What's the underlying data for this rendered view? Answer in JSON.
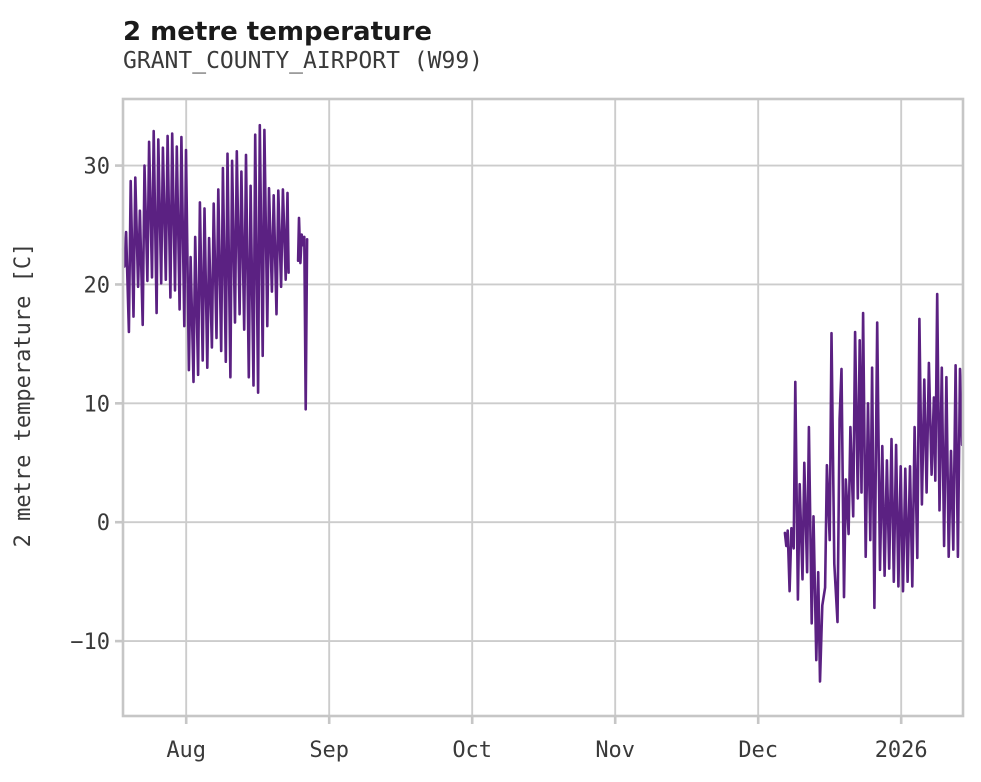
{
  "header": {
    "title": "2 metre temperature",
    "subtitle": "GRANT_COUNTY_AIRPORT (W99)"
  },
  "chart_data": {
    "type": "line",
    "title": "2 metre temperature",
    "subtitle": "GRANT_COUNTY_AIRPORT (W99)",
    "xlabel": "",
    "ylabel": "2 metre temperature [C]",
    "grid": true,
    "legend_position": "none",
    "line_color": "#5b2182",
    "grid_color": "#cccccc",
    "spine_color": "#c6c6c6",
    "x_unit": "days (axis origin = left edge, mid-July; ticks = month starts)",
    "xlim": [
      0,
      182.1
    ],
    "ylim": [
      -16.3,
      35.6
    ],
    "x_ticks": [
      {
        "pos": 13.7,
        "label": "Aug"
      },
      {
        "pos": 44.7,
        "label": "Sep"
      },
      {
        "pos": 75.7,
        "label": "Oct"
      },
      {
        "pos": 106.7,
        "label": "Nov"
      },
      {
        "pos": 137.7,
        "label": "Dec"
      },
      {
        "pos": 168.7,
        "label": "2026"
      }
    ],
    "y_ticks": [
      {
        "value": 30,
        "label": "30"
      },
      {
        "value": 20,
        "label": "20"
      },
      {
        "value": 10,
        "label": "10"
      },
      {
        "value": 0,
        "label": "0"
      },
      {
        "value": -10,
        "label": "−10"
      }
    ],
    "series": [
      {
        "name": "2 metre temperature",
        "segments": [
          [
            [
              0.05,
              23.0
            ],
            [
              0.3,
              21.5
            ],
            [
              0.68,
              24.4
            ],
            [
              1.28,
              16.0
            ],
            [
              1.66,
              28.7
            ],
            [
              2.28,
              17.3
            ],
            [
              2.66,
              29.0
            ],
            [
              3.28,
              19.8
            ],
            [
              3.66,
              26.2
            ],
            [
              4.28,
              16.6
            ],
            [
              4.66,
              30.0
            ],
            [
              5.28,
              20.3
            ],
            [
              5.66,
              32.0
            ],
            [
              6.28,
              20.6
            ],
            [
              6.66,
              32.9
            ],
            [
              7.28,
              17.6
            ],
            [
              7.66,
              32.2
            ],
            [
              8.28,
              20.1
            ],
            [
              8.66,
              31.5
            ],
            [
              9.28,
              20.4
            ],
            [
              9.66,
              32.5
            ],
            [
              10.28,
              18.9
            ],
            [
              10.66,
              32.7
            ],
            [
              11.28,
              19.5
            ],
            [
              11.66,
              31.6
            ],
            [
              12.28,
              17.9
            ],
            [
              12.66,
              32.4
            ],
            [
              13.28,
              16.5
            ],
            [
              13.66,
              31.3
            ],
            [
              14.28,
              12.8
            ],
            [
              14.66,
              22.3
            ],
            [
              15.28,
              11.8
            ],
            [
              15.66,
              24.0
            ],
            [
              16.28,
              12.4
            ],
            [
              16.66,
              26.9
            ],
            [
              17.28,
              13.6
            ],
            [
              17.66,
              26.4
            ],
            [
              18.28,
              13.0
            ],
            [
              18.66,
              23.9
            ],
            [
              19.28,
              14.7
            ],
            [
              19.66,
              26.8
            ],
            [
              20.28,
              15.5
            ],
            [
              20.66,
              28.0
            ],
            [
              21.28,
              14.4
            ],
            [
              21.66,
              29.8
            ],
            [
              22.28,
              13.5
            ],
            [
              22.66,
              31.0
            ],
            [
              23.28,
              12.2
            ],
            [
              23.66,
              30.4
            ],
            [
              24.28,
              16.8
            ],
            [
              24.66,
              31.2
            ],
            [
              25.28,
              17.5
            ],
            [
              25.66,
              29.5
            ],
            [
              26.28,
              16.2
            ],
            [
              26.66,
              30.9
            ],
            [
              27.28,
              12.2
            ],
            [
              27.66,
              28.3
            ],
            [
              28.28,
              11.5
            ],
            [
              28.66,
              32.6
            ],
            [
              29.28,
              10.9
            ],
            [
              29.66,
              33.4
            ],
            [
              30.28,
              14.0
            ],
            [
              30.66,
              33.0
            ],
            [
              31.28,
              16.5
            ],
            [
              31.66,
              28.1
            ],
            [
              32.28,
              19.4
            ],
            [
              32.66,
              27.5
            ],
            [
              33.28,
              17.5
            ],
            [
              33.66,
              27.9
            ],
            [
              34.28,
              19.8
            ],
            [
              34.66,
              28.0
            ],
            [
              35.28,
              20.4
            ],
            [
              35.66,
              27.7
            ],
            [
              35.9,
              21.0
            ]
          ],
          [
            [
              37.95,
              22.0
            ],
            [
              38.15,
              25.6
            ],
            [
              38.45,
              21.8
            ],
            [
              38.75,
              24.2
            ],
            [
              39.0,
              23.3
            ],
            [
              39.3,
              24.0
            ],
            [
              39.6,
              9.5
            ],
            [
              39.9,
              23.8
            ]
          ],
          [
            [
              143.5,
              -0.9
            ],
            [
              143.8,
              -2.0
            ],
            [
              144.1,
              -0.7
            ],
            [
              144.5,
              -5.8
            ],
            [
              144.9,
              -0.5
            ],
            [
              145.4,
              -2.2
            ],
            [
              145.75,
              11.8
            ],
            [
              146.3,
              -6.5
            ],
            [
              146.7,
              3.2
            ],
            [
              147.3,
              -4.8
            ],
            [
              147.7,
              5.0
            ],
            [
              148.3,
              -4.2
            ],
            [
              148.7,
              8.0
            ],
            [
              149.3,
              -8.5
            ],
            [
              149.7,
              0.5
            ],
            [
              150.3,
              -11.6
            ],
            [
              150.7,
              -4.2
            ],
            [
              151.1,
              -13.4
            ],
            [
              151.6,
              -7.0
            ],
            [
              152.2,
              -5.5
            ],
            [
              152.6,
              4.8
            ],
            [
              153.2,
              -1.5
            ],
            [
              153.6,
              15.9
            ],
            [
              154.2,
              -3.5
            ],
            [
              154.9,
              -8.4
            ],
            [
              155.35,
              8.7
            ],
            [
              155.75,
              12.9
            ],
            [
              156.3,
              -6.3
            ],
            [
              156.7,
              3.6
            ],
            [
              157.3,
              -1.0
            ],
            [
              157.7,
              8.0
            ],
            [
              158.3,
              0.5
            ],
            [
              158.7,
              16.0
            ],
            [
              159.3,
              2.0
            ],
            [
              159.7,
              15.3
            ],
            [
              160.1,
              2.5
            ],
            [
              160.45,
              17.6
            ],
            [
              161.0,
              -2.9
            ],
            [
              161.5,
              10.0
            ],
            [
              162.0,
              -1.5
            ],
            [
              162.4,
              13.0
            ],
            [
              162.9,
              -7.2
            ],
            [
              163.5,
              16.8
            ],
            [
              164.1,
              -4.0
            ],
            [
              164.6,
              6.4
            ],
            [
              165.1,
              -4.5
            ],
            [
              165.6,
              5.2
            ],
            [
              166.1,
              -3.9
            ],
            [
              166.6,
              7.0
            ],
            [
              167.1,
              -5.0
            ],
            [
              167.6,
              6.5
            ],
            [
              168.1,
              -5.4
            ],
            [
              168.6,
              4.7
            ],
            [
              169.1,
              -5.8
            ],
            [
              169.6,
              4.5
            ],
            [
              170.1,
              -5.0
            ],
            [
              170.6,
              4.7
            ],
            [
              171.1,
              -5.4
            ],
            [
              171.6,
              8.0
            ],
            [
              172.2,
              -3.0
            ],
            [
              172.65,
              17.1
            ],
            [
              173.2,
              1.5
            ],
            [
              173.7,
              12.0
            ],
            [
              174.2,
              2.5
            ],
            [
              174.7,
              13.4
            ],
            [
              175.3,
              4.0
            ],
            [
              175.8,
              10.5
            ],
            [
              176.1,
              3.5
            ],
            [
              176.5,
              19.2
            ],
            [
              177.0,
              1.0
            ],
            [
              177.5,
              13.0
            ],
            [
              178.0,
              -2.0
            ],
            [
              178.5,
              12.2
            ],
            [
              179.0,
              -2.9
            ],
            [
              179.5,
              6.0
            ],
            [
              180.0,
              -2.3
            ],
            [
              180.5,
              13.2
            ],
            [
              181.0,
              -2.9
            ],
            [
              181.45,
              12.9
            ],
            [
              181.9,
              6.5
            ]
          ]
        ]
      }
    ]
  }
}
